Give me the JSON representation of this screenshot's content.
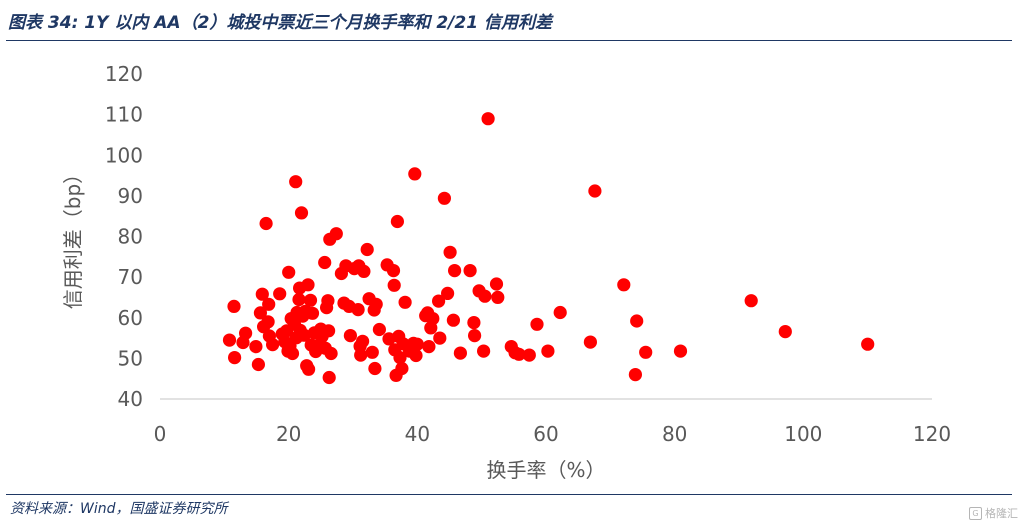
{
  "figure_title": "图表 34: 1Y 以内 AA（2）城投中票近三个月换手率和 2/21 信用利差",
  "source": "资料来源：Wind，国盛证券研究所",
  "watermark": "格隆汇",
  "colors": {
    "point": "#ff0000",
    "title": "#1f3864",
    "axis": "#d9d9d9",
    "tick": "#595959"
  },
  "chart_data": {
    "type": "scatter",
    "xlabel": "换手率（%）",
    "ylabel": "信用利差（bp）",
    "xlim": [
      0,
      120
    ],
    "ylim": [
      40,
      120
    ],
    "xticks": [
      "0",
      "20",
      "40",
      "60",
      "80",
      "100",
      "120"
    ],
    "yticks": [
      "40",
      "50",
      "60",
      "70",
      "80",
      "90",
      "100",
      "110",
      "120"
    ],
    "grid": false,
    "legend": "none",
    "series": [
      {
        "points": [
          [
            10.8,
            54.5
          ],
          [
            11.5,
            62.8
          ],
          [
            11.6,
            50.2
          ],
          [
            12.9,
            53.9
          ],
          [
            13.3,
            56.2
          ],
          [
            14.9,
            52.9
          ],
          [
            15.3,
            48.5
          ],
          [
            15.6,
            61.2
          ],
          [
            15.9,
            65.8
          ],
          [
            16.1,
            57.8
          ],
          [
            16.5,
            83.2
          ],
          [
            16.8,
            59.0
          ],
          [
            16.9,
            63.3
          ],
          [
            17.0,
            55.5
          ],
          [
            17.5,
            53.4
          ],
          [
            18.6,
            65.9
          ],
          [
            19.0,
            56.0
          ],
          [
            19.4,
            54.1
          ],
          [
            19.7,
            56.8
          ],
          [
            19.9,
            51.8
          ],
          [
            20.0,
            71.2
          ],
          [
            20.2,
            53.1
          ],
          [
            20.4,
            59.8
          ],
          [
            20.6,
            51.2
          ],
          [
            20.9,
            58.4
          ],
          [
            21.1,
            93.5
          ],
          [
            21.2,
            55.1
          ],
          [
            21.3,
            61.3
          ],
          [
            21.6,
            64.5
          ],
          [
            21.7,
            67.3
          ],
          [
            21.8,
            56.9
          ],
          [
            22.0,
            85.8
          ],
          [
            22.2,
            60.4
          ],
          [
            22.4,
            55.7
          ],
          [
            22.6,
            61.6
          ],
          [
            22.8,
            48.2
          ],
          [
            23.0,
            68.1
          ],
          [
            23.1,
            47.3
          ],
          [
            23.4,
            64.3
          ],
          [
            23.5,
            53.3
          ],
          [
            23.7,
            61.1
          ],
          [
            24.0,
            56.3
          ],
          [
            24.2,
            51.7
          ],
          [
            24.6,
            53.2
          ],
          [
            25.0,
            57.2
          ],
          [
            25.2,
            55.4
          ],
          [
            25.6,
            73.6
          ],
          [
            25.7,
            52.5
          ],
          [
            25.9,
            62.5
          ],
          [
            26.1,
            64.2
          ],
          [
            26.2,
            56.8
          ],
          [
            26.3,
            45.3
          ],
          [
            26.4,
            79.3
          ],
          [
            26.6,
            51.2
          ],
          [
            27.4,
            80.7
          ],
          [
            28.2,
            70.9
          ],
          [
            28.6,
            63.6
          ],
          [
            28.9,
            72.8
          ],
          [
            29.4,
            62.8
          ],
          [
            29.6,
            55.6
          ],
          [
            30.2,
            72.1
          ],
          [
            30.8,
            62.0
          ],
          [
            30.9,
            72.8
          ],
          [
            31.1,
            53.0
          ],
          [
            31.2,
            50.8
          ],
          [
            31.5,
            54.2
          ],
          [
            31.7,
            71.4
          ],
          [
            32.2,
            76.8
          ],
          [
            32.5,
            64.7
          ],
          [
            33.0,
            51.5
          ],
          [
            33.3,
            61.9
          ],
          [
            33.4,
            47.5
          ],
          [
            33.6,
            63.3
          ],
          [
            34.1,
            57.1
          ],
          [
            35.3,
            73.0
          ],
          [
            35.6,
            54.8
          ],
          [
            36.3,
            71.6
          ],
          [
            36.4,
            68.0
          ],
          [
            36.5,
            52.1
          ],
          [
            36.7,
            45.8
          ],
          [
            36.9,
            83.7
          ],
          [
            37.1,
            55.4
          ],
          [
            37.3,
            50.2
          ],
          [
            37.6,
            47.5
          ],
          [
            37.8,
            53.6
          ],
          [
            38.1,
            63.8
          ],
          [
            38.5,
            53.0
          ],
          [
            38.8,
            51.8
          ],
          [
            39.4,
            53.7
          ],
          [
            39.6,
            95.4
          ],
          [
            39.8,
            50.7
          ],
          [
            40.0,
            53.5
          ],
          [
            41.3,
            60.5
          ],
          [
            41.6,
            61.2
          ],
          [
            41.8,
            52.9
          ],
          [
            42.1,
            57.5
          ],
          [
            42.4,
            59.8
          ],
          [
            43.3,
            64.1
          ],
          [
            43.5,
            55.0
          ],
          [
            44.2,
            89.4
          ],
          [
            44.7,
            66.0
          ],
          [
            45.1,
            76.1
          ],
          [
            45.6,
            59.4
          ],
          [
            45.8,
            71.6
          ],
          [
            46.7,
            51.3
          ],
          [
            48.2,
            71.6
          ],
          [
            48.8,
            58.8
          ],
          [
            48.9,
            55.6
          ],
          [
            49.6,
            66.6
          ],
          [
            50.3,
            51.8
          ],
          [
            50.5,
            65.3
          ],
          [
            51.0,
            109.0
          ],
          [
            52.3,
            68.3
          ],
          [
            52.5,
            65.0
          ],
          [
            54.6,
            52.9
          ],
          [
            55.2,
            51.4
          ],
          [
            55.8,
            51.0
          ],
          [
            57.4,
            50.8
          ],
          [
            58.6,
            58.4
          ],
          [
            60.3,
            51.8
          ],
          [
            62.2,
            61.3
          ],
          [
            66.9,
            54.0
          ],
          [
            67.6,
            91.2
          ],
          [
            72.1,
            68.1
          ],
          [
            73.9,
            46.0
          ],
          [
            74.1,
            59.2
          ],
          [
            75.5,
            51.5
          ],
          [
            80.9,
            51.8
          ],
          [
            91.9,
            64.2
          ],
          [
            97.2,
            56.6
          ],
          [
            110.0,
            53.5
          ]
        ]
      }
    ]
  }
}
